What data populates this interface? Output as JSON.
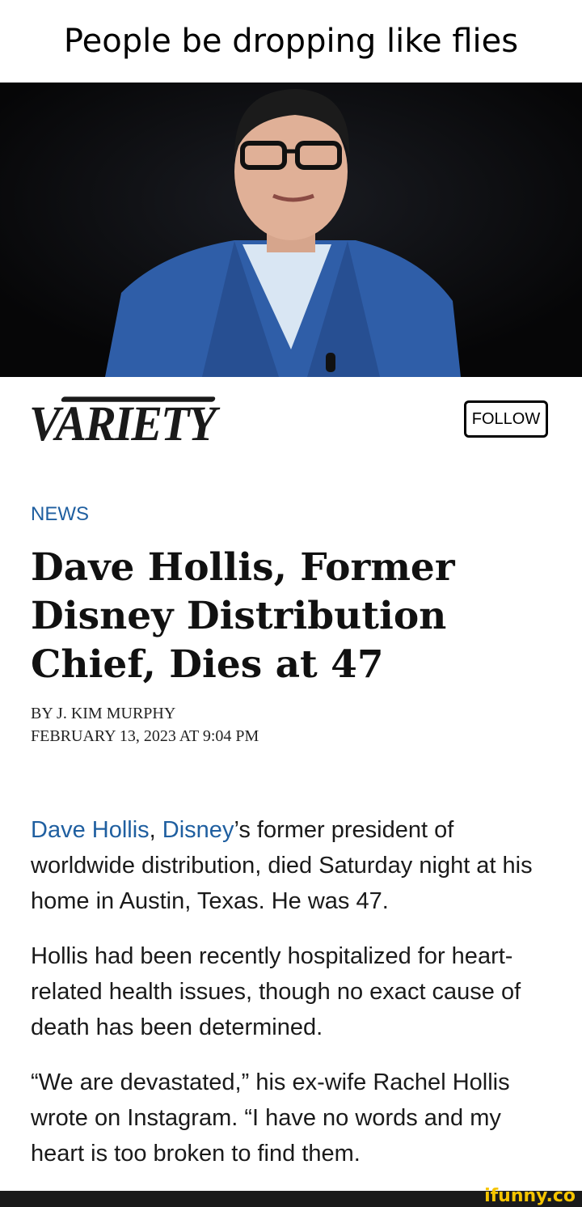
{
  "meme_caption": "People be dropping like flies",
  "header": {
    "logo_text": "VARIETY",
    "follow_label": "FOLLOW"
  },
  "article": {
    "section": "NEWS",
    "headline": "Dave Hollis, Former Disney Distribution Chief, Dies at 47",
    "byline": "BY J. KIM MURPHY",
    "date": "FEBRUARY 13, 2023 AT 9:04 PM",
    "p1_link1": "Dave Hollis",
    "p1_sep": ", ",
    "p1_link2": "Disney",
    "p1_rest": "’s former president of worldwide distribution, died Saturday night at his home in Austin, Texas. He was 47.",
    "p2": "Hollis had been recently hospitalized for heart-related health issues, though no exact cause of death has been determined.",
    "p3": "“We are devastated,” his ex-wife Rachel Hollis wrote on Instagram. “I have no words and my heart is too broken to find them."
  },
  "watermark": "ifunny.co",
  "colors": {
    "link": "#1f5fa0",
    "watermark": "#f5c400",
    "footer": "#1a1a1a"
  }
}
